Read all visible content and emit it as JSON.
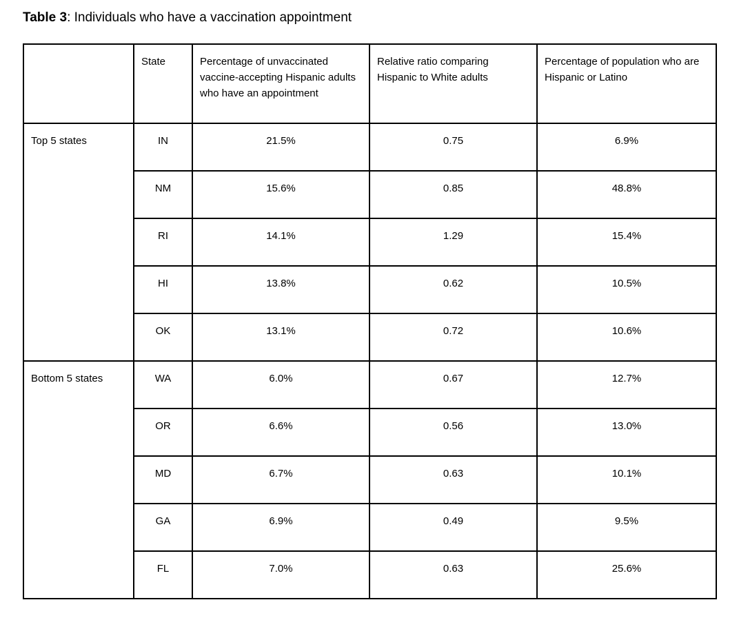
{
  "caption": {
    "label": "Table 3",
    "text": ": Individuals who have a vaccination appointment"
  },
  "table": {
    "headers": [
      "",
      "State",
      "Percentage of unvaccinated vaccine-accepting Hispanic adults who have an appointment",
      "Relative ratio comparing Hispanic to White adults",
      "Percentage of population who are Hispanic or Latino"
    ],
    "groups": [
      {
        "label": "Top 5 states",
        "rows": [
          {
            "state": "IN",
            "pct": "21.5%",
            "ratio": "0.75",
            "pop": "6.9%"
          },
          {
            "state": "NM",
            "pct": "15.6%",
            "ratio": "0.85",
            "pop": "48.8%"
          },
          {
            "state": "RI",
            "pct": "14.1%",
            "ratio": "1.29",
            "pop": "15.4%"
          },
          {
            "state": "HI",
            "pct": "13.8%",
            "ratio": "0.62",
            "pop": "10.5%"
          },
          {
            "state": "OK",
            "pct": "13.1%",
            "ratio": "0.72",
            "pop": "10.6%"
          }
        ]
      },
      {
        "label": "Bottom 5 states",
        "rows": [
          {
            "state": "WA",
            "pct": "6.0%",
            "ratio": "0.67",
            "pop": "12.7%"
          },
          {
            "state": "OR",
            "pct": "6.6%",
            "ratio": "0.56",
            "pop": "13.0%"
          },
          {
            "state": "MD",
            "pct": "6.7%",
            "ratio": "0.63",
            "pop": "10.1%"
          },
          {
            "state": "GA",
            "pct": "6.9%",
            "ratio": "0.49",
            "pop": "9.5%"
          },
          {
            "state": "FL",
            "pct": "7.0%",
            "ratio": "0.63",
            "pop": "25.6%"
          }
        ]
      }
    ]
  }
}
